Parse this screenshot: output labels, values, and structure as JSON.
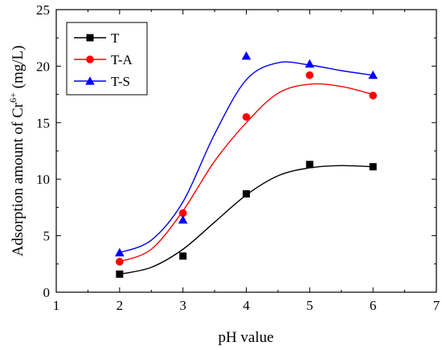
{
  "chart_data": {
    "type": "scatter",
    "xlabel": "pH value",
    "ylabel": {
      "prefix": "Adsorption amount of Cr",
      "superscript": "6+",
      "suffix": " (mg/L)"
    },
    "xlim": [
      1,
      7
    ],
    "ylim": [
      0,
      25
    ],
    "xticks": [
      "1",
      "2",
      "3",
      "4",
      "5",
      "6",
      "7"
    ],
    "yticks": [
      "0",
      "5",
      "10",
      "15",
      "20",
      "25"
    ],
    "legend_position": "top-left",
    "grid": false,
    "series": [
      {
        "name": "T",
        "marker": "square",
        "color": "#000000",
        "x": [
          2,
          3,
          4,
          5,
          6
        ],
        "y": [
          1.6,
          3.2,
          8.7,
          11.3,
          11.1
        ],
        "fit_curve": [
          [
            2,
            1.6
          ],
          [
            2.5,
            2.2
          ],
          [
            3,
            3.8
          ],
          [
            3.5,
            6.2
          ],
          [
            4,
            8.6
          ],
          [
            4.5,
            10.3
          ],
          [
            5,
            11.0
          ],
          [
            5.5,
            11.2
          ],
          [
            6,
            11.1
          ]
        ]
      },
      {
        "name": "T-A",
        "marker": "circle",
        "color": "#ff0000",
        "x": [
          2,
          3,
          4,
          5,
          6
        ],
        "y": [
          2.7,
          7.0,
          15.5,
          19.2,
          17.4
        ],
        "fit_curve": [
          [
            2,
            2.7
          ],
          [
            2.5,
            3.8
          ],
          [
            3,
            7.2
          ],
          [
            3.5,
            11.6
          ],
          [
            4,
            15.0
          ],
          [
            4.5,
            17.6
          ],
          [
            5,
            18.4
          ],
          [
            5.5,
            18.2
          ],
          [
            6,
            17.5
          ]
        ]
      },
      {
        "name": "T-S",
        "marker": "triangle",
        "color": "#0000ff",
        "x": [
          2,
          3,
          4,
          5,
          6
        ],
        "y": [
          3.5,
          6.4,
          20.9,
          20.2,
          19.2
        ],
        "fit_curve": [
          [
            2,
            3.5
          ],
          [
            2.5,
            4.6
          ],
          [
            3,
            8.0
          ],
          [
            3.5,
            14.0
          ],
          [
            4,
            18.8
          ],
          [
            4.5,
            20.3
          ],
          [
            5,
            20.1
          ],
          [
            5.5,
            19.6
          ],
          [
            6,
            19.2
          ]
        ]
      }
    ]
  }
}
